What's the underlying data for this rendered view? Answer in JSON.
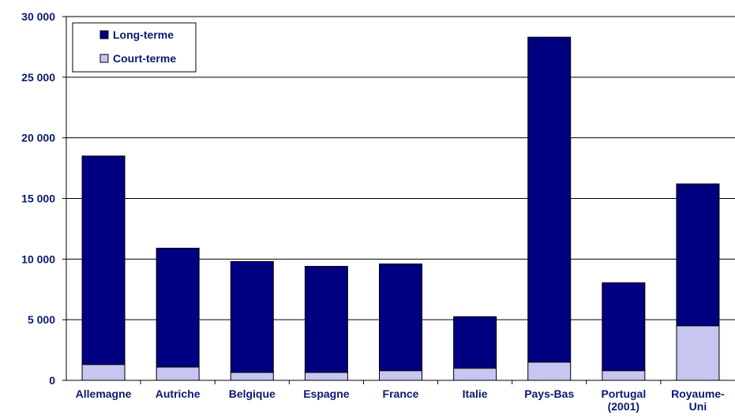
{
  "chart_data": {
    "type": "bar",
    "stacked": true,
    "categories": [
      [
        "Allemagne"
      ],
      [
        "Autriche"
      ],
      [
        "Belgique"
      ],
      [
        "Espagne"
      ],
      [
        "France"
      ],
      [
        "Italie"
      ],
      [
        "Pays-Bas"
      ],
      [
        "Portugal",
        "(2001)"
      ],
      [
        "Royaume-",
        "Uni"
      ]
    ],
    "series": [
      {
        "name": "Court-terme",
        "color": "#c6c6f0",
        "values": [
          1300,
          1100,
          650,
          650,
          800,
          1000,
          1500,
          800,
          4500
        ]
      },
      {
        "name": "Long-terme",
        "color": "#000080",
        "values": [
          17200,
          9800,
          9150,
          8750,
          8800,
          4250,
          26800,
          7250,
          11700
        ]
      }
    ],
    "ylim": [
      0,
      30000
    ],
    "yticks": [
      0,
      5000,
      10000,
      15000,
      20000,
      25000,
      30000
    ],
    "ytick_labels": [
      "0",
      "5 000",
      "10 000",
      "15 000",
      "20 000",
      "25 000",
      "30 000"
    ],
    "grid": true,
    "legend_position": "top-left",
    "legend_order": [
      "Long-terme",
      "Court-terme"
    ]
  }
}
